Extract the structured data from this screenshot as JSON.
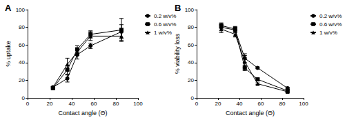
{
  "chart_data": [
    {
      "type": "line",
      "title": "A",
      "x_label": "Contact angle (Θ)",
      "y_label": "% uptake",
      "x": [
        23,
        36,
        45,
        57,
        85
      ],
      "series": [
        {
          "name": "0.2 w/v%",
          "color": "#000000",
          "marker": "circle",
          "values": [
            12,
            22,
            49,
            59,
            75
          ],
          "error": [
            1,
            4,
            5,
            3,
            8
          ]
        },
        {
          "name": "0.6 w/v%",
          "color": "#000000",
          "marker": "square",
          "values": [
            11,
            32,
            55,
            72,
            77
          ],
          "error": [
            1,
            5,
            4,
            4,
            13
          ]
        },
        {
          "name": "1 w/v%",
          "color": "#000000",
          "marker": "triangle",
          "values": [
            12,
            38,
            52,
            70,
            70
          ],
          "error": [
            1,
            7,
            4,
            5,
            5
          ]
        }
      ],
      "xlim": [
        0,
        100
      ],
      "xticks": [
        0,
        20,
        40,
        60,
        80,
        100
      ],
      "ylim": [
        0,
        100
      ],
      "yticks": [
        0,
        20,
        40,
        60,
        80,
        100
      ],
      "grid": false,
      "legend": "right"
    },
    {
      "type": "line",
      "title": "B",
      "x_label": "Contact angle (Θ)",
      "y_label": "% viability loss",
      "x": [
        23,
        36,
        45,
        57,
        85
      ],
      "series": [
        {
          "name": "0.2 w/v%",
          "color": "#000000",
          "marker": "circle",
          "values": [
            80,
            77,
            45,
            34,
            11
          ],
          "error": [
            3,
            3,
            5,
            1,
            1
          ]
        },
        {
          "name": "0.6 w/v%",
          "color": "#000000",
          "marker": "square",
          "values": [
            82,
            78,
            34,
            21,
            8
          ],
          "error": [
            3,
            3,
            3,
            1,
            1
          ]
        },
        {
          "name": "1 w/v%",
          "color": "#000000",
          "marker": "triangle",
          "values": [
            78,
            72,
            41,
            16,
            7
          ],
          "error": [
            4,
            3,
            7,
            1,
            1
          ]
        }
      ],
      "xlim": [
        0,
        100
      ],
      "xticks": [
        0,
        20,
        40,
        60,
        80,
        100
      ],
      "ylim": [
        0,
        100
      ],
      "yticks": [
        0,
        20,
        40,
        60,
        80,
        100
      ],
      "grid": false,
      "legend": "right"
    }
  ]
}
